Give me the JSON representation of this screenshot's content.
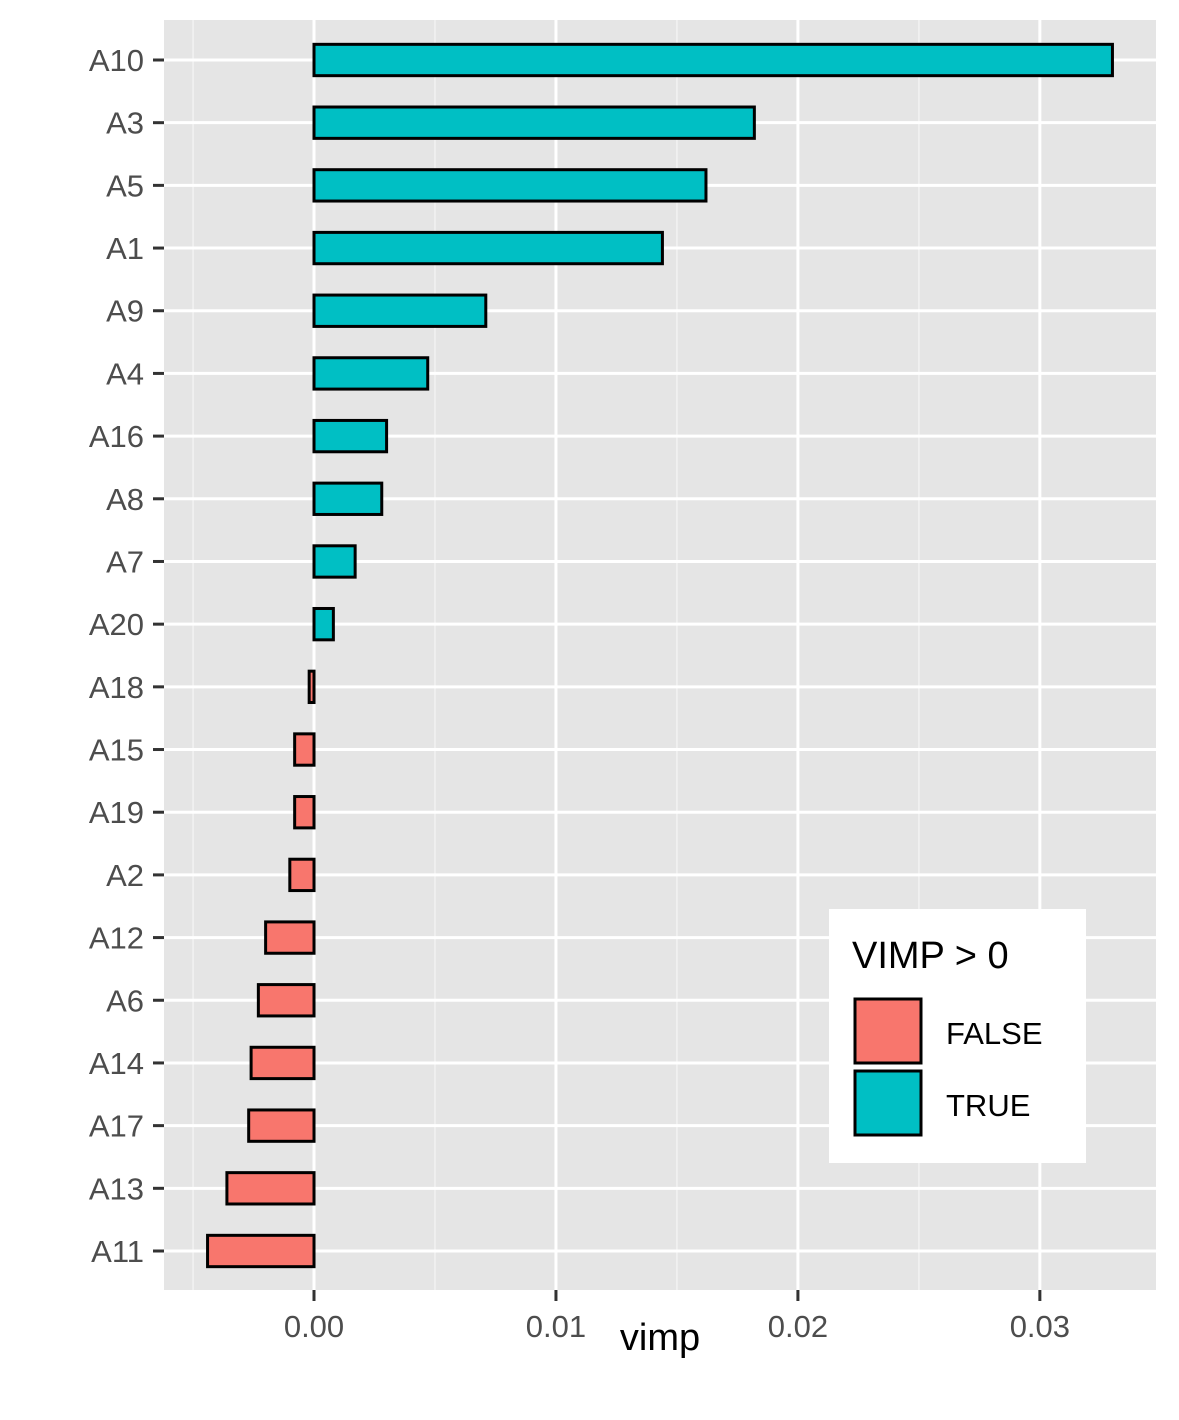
{
  "chart_data": {
    "type": "bar",
    "orientation": "horizontal",
    "title": "",
    "xlabel": "vimp",
    "ylabel": "",
    "xlim": [
      -0.0062,
      0.0348
    ],
    "x_ticks": [
      {
        "value": 0.0,
        "label": "0.00"
      },
      {
        "value": 0.01,
        "label": "0.01"
      },
      {
        "value": 0.02,
        "label": "0.02"
      },
      {
        "value": 0.03,
        "label": "0.03"
      }
    ],
    "grid": true,
    "legend": {
      "title": "VIMP > 0",
      "placement": "bottom-right",
      "entries": [
        {
          "label": "FALSE",
          "color": "#F8766D"
        },
        {
          "label": "TRUE",
          "color": "#00BFC4"
        }
      ]
    },
    "categories": [
      "A10",
      "A3",
      "A5",
      "A1",
      "A9",
      "A4",
      "A16",
      "A8",
      "A7",
      "A20",
      "A18",
      "A15",
      "A19",
      "A2",
      "A12",
      "A6",
      "A14",
      "A17",
      "A13",
      "A11"
    ],
    "values": [
      0.033,
      0.0182,
      0.0162,
      0.0144,
      0.0071,
      0.0047,
      0.003,
      0.0028,
      0.0017,
      0.0008,
      -0.0002,
      -0.0008,
      -0.0008,
      -0.001,
      -0.002,
      -0.0023,
      -0.0026,
      -0.0027,
      -0.0036,
      -0.0044
    ],
    "positive": [
      true,
      true,
      true,
      true,
      true,
      true,
      true,
      true,
      true,
      true,
      false,
      false,
      false,
      false,
      false,
      false,
      false,
      false,
      false,
      false
    ]
  }
}
